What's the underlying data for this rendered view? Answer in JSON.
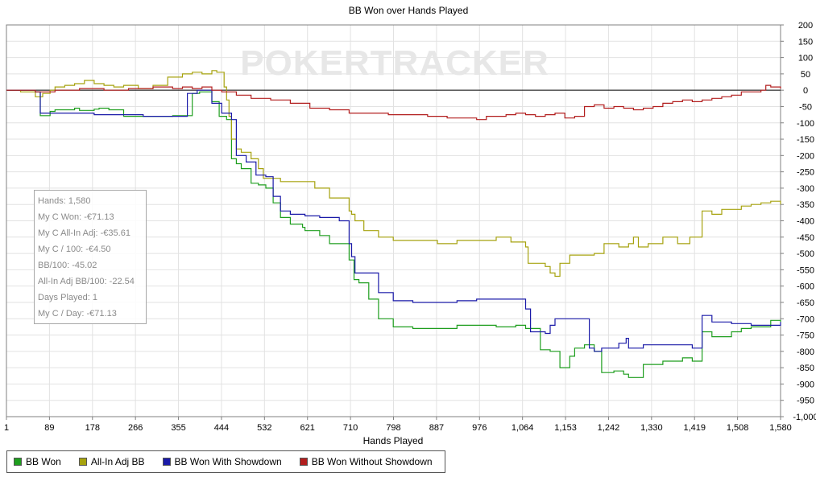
{
  "chart_data": {
    "type": "line",
    "title": "BB Won over Hands Played",
    "xlabel": "Hands Played",
    "ylabel": "",
    "xlim": [
      1,
      1580
    ],
    "ylim": [
      -1000,
      200
    ],
    "x_ticks": [
      "1",
      "89",
      "178",
      "266",
      "355",
      "444",
      "532",
      "621",
      "710",
      "798",
      "887",
      "976",
      "1,064",
      "1,153",
      "1,242",
      "1,330",
      "1,419",
      "1,508",
      "1,580"
    ],
    "y_ticks": [
      200,
      150,
      100,
      50,
      0,
      -50,
      -100,
      -150,
      -200,
      -250,
      -300,
      -350,
      -400,
      -450,
      -500,
      -550,
      -600,
      -650,
      -700,
      -750,
      -800,
      -850,
      -900,
      -950,
      -1000
    ],
    "y_tick_labels": [
      "200",
      "150",
      "100",
      "50",
      "0",
      "-50",
      "-100",
      "-150",
      "-200",
      "-250",
      "-300",
      "-350",
      "-400",
      "-450",
      "-500",
      "-550",
      "-600",
      "-650",
      "-700",
      "-750",
      "-800",
      "-850",
      "-900",
      "-950",
      "-1,000"
    ],
    "watermark": "POKERTRACKER",
    "legend_position": "bottom-left",
    "grid": true,
    "series": [
      {
        "name": "BB Won",
        "color": "#1e9e1e",
        "x": [
          1,
          60,
          70,
          90,
          100,
          140,
          150,
          180,
          190,
          210,
          240,
          280,
          340,
          380,
          395,
          420,
          435,
          450,
          460,
          470,
          480,
          500,
          515,
          530,
          545,
          560,
          580,
          605,
          610,
          640,
          660,
          700,
          710,
          720,
          740,
          760,
          790,
          830,
          880,
          920,
          960,
          1000,
          1040,
          1060,
          1090,
          1110,
          1130,
          1150,
          1160,
          1180,
          1200,
          1215,
          1240,
          1260,
          1270,
          1300,
          1340,
          1380,
          1400,
          1420,
          1440,
          1480,
          1500,
          1520,
          1540,
          1560,
          1580
        ],
        "values": [
          0,
          -5,
          -78,
          -65,
          -60,
          -55,
          -62,
          -58,
          -55,
          -60,
          -80,
          -80,
          -78,
          -10,
          -5,
          -35,
          -80,
          -90,
          -210,
          -225,
          -240,
          -285,
          -290,
          -300,
          -345,
          -390,
          -410,
          -420,
          -430,
          -445,
          -470,
          -520,
          -580,
          -590,
          -640,
          -700,
          -725,
          -730,
          -730,
          -720,
          -720,
          -725,
          -720,
          -730,
          -795,
          -800,
          -850,
          -815,
          -790,
          -780,
          -800,
          -865,
          -860,
          -870,
          -880,
          -840,
          -830,
          -820,
          -830,
          -740,
          -755,
          -740,
          -730,
          -725,
          -725,
          -705,
          -710
        ]
      },
      {
        "name": "All-In Adj BB",
        "color": "#a6a20e",
        "x": [
          1,
          30,
          60,
          75,
          90,
          100,
          120,
          140,
          160,
          180,
          200,
          220,
          240,
          270,
          300,
          330,
          360,
          380,
          400,
          420,
          430,
          445,
          450,
          455,
          460,
          470,
          480,
          500,
          515,
          525,
          540,
          560,
          600,
          630,
          660,
          700,
          705,
          712,
          730,
          760,
          790,
          830,
          880,
          920,
          960,
          1000,
          1030,
          1060,
          1065,
          1080,
          1100,
          1110,
          1120,
          1130,
          1150,
          1180,
          1200,
          1220,
          1240,
          1250,
          1270,
          1280,
          1290,
          1310,
          1340,
          1370,
          1380,
          1395,
          1410,
          1420,
          1440,
          1460,
          1500,
          1520,
          1540,
          1560,
          1580
        ],
        "values": [
          0,
          -5,
          -20,
          -10,
          0,
          10,
          15,
          20,
          30,
          20,
          15,
          10,
          15,
          5,
          15,
          40,
          50,
          55,
          50,
          60,
          55,
          10,
          -30,
          -80,
          -150,
          -180,
          -190,
          -210,
          -240,
          -270,
          -270,
          -280,
          -280,
          -300,
          -330,
          -370,
          -380,
          -400,
          -430,
          -450,
          -460,
          -460,
          -470,
          -460,
          -460,
          -450,
          -465,
          -480,
          -530,
          -530,
          -540,
          -560,
          -570,
          -530,
          -505,
          -505,
          -500,
          -470,
          -470,
          -480,
          -470,
          -450,
          -480,
          -470,
          -450,
          -470,
          -470,
          -450,
          -450,
          -370,
          -380,
          -365,
          -355,
          -350,
          -345,
          -340,
          -350
        ]
      },
      {
        "name": "BB Won With Showdown",
        "color": "#1a1aa8",
        "x": [
          1,
          60,
          70,
          130,
          180,
          200,
          240,
          280,
          340,
          370,
          390,
          420,
          440,
          460,
          470,
          490,
          510,
          530,
          545,
          560,
          580,
          610,
          640,
          680,
          700,
          705,
          712,
          740,
          760,
          790,
          830,
          920,
          960,
          1000,
          1040,
          1060,
          1070,
          1100,
          1110,
          1120,
          1150,
          1180,
          1190,
          1200,
          1215,
          1250,
          1265,
          1270,
          1300,
          1340,
          1380,
          1400,
          1420,
          1440,
          1460,
          1480,
          1520,
          1560,
          1580
        ],
        "values": [
          0,
          -5,
          -70,
          -70,
          -75,
          -75,
          -75,
          -80,
          -80,
          -10,
          0,
          -40,
          -70,
          -90,
          -200,
          -220,
          -260,
          -265,
          -325,
          -370,
          -380,
          -385,
          -390,
          -400,
          -470,
          -510,
          -560,
          -560,
          -620,
          -645,
          -650,
          -645,
          -640,
          -640,
          -640,
          -670,
          -740,
          -745,
          -720,
          -700,
          -700,
          -700,
          -790,
          -800,
          -790,
          -775,
          -760,
          -790,
          -780,
          -780,
          -780,
          -790,
          -690,
          -710,
          -710,
          -715,
          -720,
          -720,
          -710
        ]
      },
      {
        "name": "BB Won Without Showdown",
        "color": "#b21e1e",
        "x": [
          1,
          60,
          100,
          150,
          200,
          250,
          300,
          340,
          360,
          380,
          400,
          420,
          440,
          470,
          500,
          540,
          580,
          620,
          660,
          700,
          740,
          780,
          820,
          860,
          900,
          940,
          960,
          980,
          1000,
          1020,
          1040,
          1060,
          1080,
          1100,
          1120,
          1140,
          1160,
          1180,
          1200,
          1220,
          1240,
          1260,
          1280,
          1300,
          1320,
          1340,
          1360,
          1380,
          1400,
          1420,
          1440,
          1460,
          1480,
          1500,
          1520,
          1540,
          1550,
          1560,
          1570,
          1580
        ],
        "values": [
          0,
          -5,
          0,
          5,
          0,
          5,
          10,
          5,
          10,
          5,
          10,
          0,
          -5,
          -15,
          -25,
          -30,
          -40,
          -55,
          -60,
          -70,
          -70,
          -75,
          -75,
          -80,
          -85,
          -85,
          -90,
          -80,
          -80,
          -75,
          -70,
          -75,
          -80,
          -75,
          -70,
          -85,
          -80,
          -50,
          -45,
          -55,
          -50,
          -55,
          -60,
          -55,
          -50,
          -40,
          -35,
          -30,
          -35,
          -30,
          -25,
          -20,
          -15,
          -5,
          -5,
          0,
          15,
          10,
          10,
          5
        ]
      }
    ]
  },
  "stats_box": {
    "lines": [
      "Hands: 1,580",
      "My C Won: -€71.13",
      "My C All-In Adj: -€35.61",
      "My C / 100: -€4.50",
      "BB/100: -45.02",
      "All-In Adj BB/100: -22.54",
      "Days Played: 1",
      "My C / Day: -€71.13"
    ]
  }
}
